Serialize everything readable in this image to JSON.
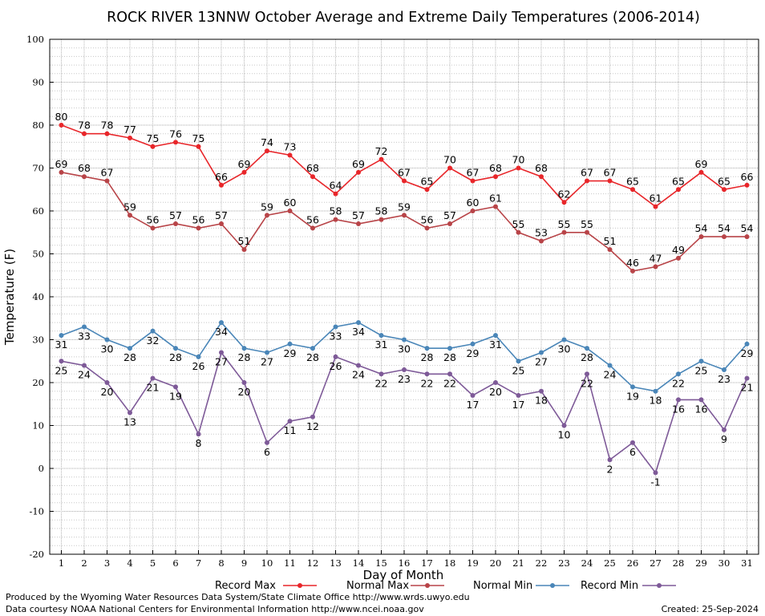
{
  "chart_data": {
    "type": "line",
    "title": "ROCK RIVER 13NNW October Average and Extreme Daily Temperatures (2006-2014)",
    "xlabel": "Day of Month",
    "ylabel": "Temperature (F)",
    "ylim": [
      -20,
      100
    ],
    "yticks": [
      "-20",
      "-10",
      "0",
      "10",
      "20",
      "30",
      "40",
      "50",
      "60",
      "70",
      "80",
      "90",
      "100"
    ],
    "x": [
      1,
      2,
      3,
      4,
      5,
      6,
      7,
      8,
      9,
      10,
      11,
      12,
      13,
      14,
      15,
      16,
      17,
      18,
      19,
      20,
      21,
      22,
      23,
      24,
      25,
      26,
      27,
      28,
      29,
      30,
      31
    ],
    "xticks": [
      "1",
      "2",
      "3",
      "4",
      "5",
      "6",
      "7",
      "8",
      "9",
      "10",
      "11",
      "12",
      "13",
      "14",
      "15",
      "16",
      "17",
      "18",
      "19",
      "20",
      "21",
      "22",
      "23",
      "24",
      "25",
      "26",
      "27",
      "28",
      "29",
      "30",
      "31"
    ],
    "grid": true,
    "legend_position": "bottom",
    "series": [
      {
        "name": "Record Max",
        "color": "#e8262a",
        "values": [
          80,
          78,
          78,
          77,
          75,
          76,
          75,
          66,
          69,
          74,
          73,
          68,
          64,
          69,
          72,
          67,
          65,
          70,
          67,
          68,
          70,
          68,
          62,
          67,
          67,
          65,
          61,
          65,
          69,
          65,
          66
        ]
      },
      {
        "name": "Normal Max",
        "color": "#b84448",
        "values": [
          69,
          68,
          67,
          59,
          56,
          57,
          56,
          57,
          51,
          59,
          60,
          56,
          58,
          57,
          58,
          59,
          56,
          57,
          60,
          61,
          55,
          53,
          55,
          55,
          51,
          46,
          47,
          49,
          54,
          54,
          54
        ]
      },
      {
        "name": "Normal Min",
        "color": "#4a86b8",
        "values": [
          31,
          33,
          30,
          28,
          32,
          28,
          26,
          34,
          28,
          27,
          29,
          28,
          33,
          34,
          31,
          30,
          28,
          28,
          29,
          31,
          25,
          27,
          30,
          28,
          24,
          19,
          18,
          22,
          25,
          23,
          29
        ]
      },
      {
        "name": "Record Min",
        "color": "#7e5a98",
        "values": [
          25,
          24,
          20,
          13,
          21,
          19,
          8,
          27,
          20,
          6,
          11,
          12,
          26,
          24,
          22,
          23,
          22,
          22,
          17,
          20,
          17,
          18,
          10,
          22,
          2,
          6,
          -1,
          16,
          16,
          9,
          21
        ]
      }
    ]
  },
  "footer": {
    "produced_by": "Produced by the Wyoming Water Resources Data System/State Climate Office http://www.wrds.uwyo.edu",
    "data_courtesy": "Data courtesy NOAA National Centers for Environmental Information http://www.ncei.noaa.gov",
    "created": "Created: 25-Sep-2024"
  }
}
